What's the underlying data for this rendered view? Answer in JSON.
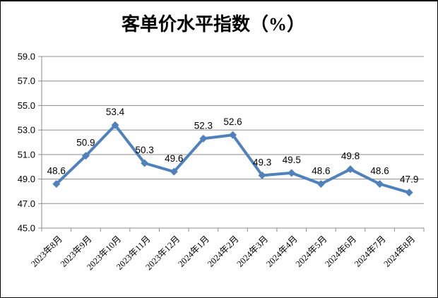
{
  "colors": {
    "line": "#4F81BD",
    "grid": "#8C8C8C",
    "axis": "#8C8C8C",
    "text": "#000000",
    "background": "#FFFFFF",
    "border": "#000000"
  },
  "chart_data": {
    "type": "line",
    "title": "客单价水平指数（%）",
    "categories": [
      "2023年8月",
      "2023年9月",
      "2023年10月",
      "2023年11月",
      "2023年12月",
      "2024年1月",
      "2024年2月",
      "2024年3月",
      "2024年4月",
      "2024年5月",
      "2024年6月",
      "2024年7月",
      "2024年8月"
    ],
    "values": [
      48.6,
      50.9,
      53.4,
      50.3,
      49.6,
      52.3,
      52.6,
      49.3,
      49.5,
      48.6,
      49.8,
      48.6,
      47.9
    ],
    "data_labels": [
      "48.6",
      "50.9",
      "53.4",
      "50.3",
      "49.6",
      "52.3",
      "52.6",
      "49.3",
      "49.5",
      "48.6",
      "49.8",
      "48.6",
      "47.9"
    ],
    "xlabel": "",
    "ylabel": "",
    "ylim": [
      45.0,
      59.0
    ],
    "ytick_step": 2.0,
    "ytick_labels": [
      "45.0",
      "47.0",
      "49.0",
      "51.0",
      "53.0",
      "55.0",
      "57.0",
      "59.0"
    ],
    "grid": true,
    "legend_position": "none",
    "marker": "diamond",
    "x_label_rotation_deg": -45
  }
}
